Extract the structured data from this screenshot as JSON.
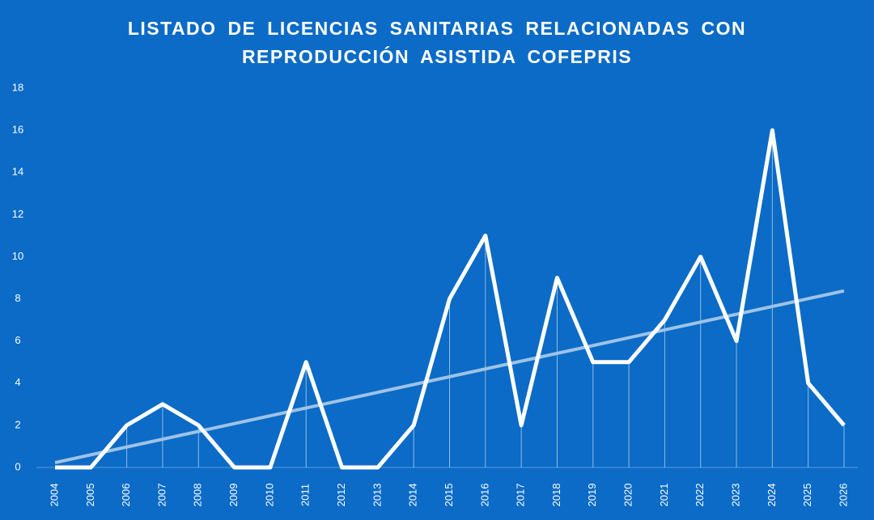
{
  "chart_data": {
    "type": "line",
    "title": "LISTADO DE LICENCIAS SANITARIAS RELACIONADAS CON REPRODUCCIÓN ASISTIDA COFEPRIS",
    "categories": [
      "2004",
      "2005",
      "2006",
      "2007",
      "2008",
      "2009",
      "2010",
      "2011",
      "2012",
      "2013",
      "2014",
      "2015",
      "2016",
      "2017",
      "2018",
      "2019",
      "2020",
      "2021",
      "2022",
      "2023",
      "2024",
      "2025",
      "2026"
    ],
    "values": [
      0,
      0,
      2,
      3,
      2,
      0,
      0,
      5,
      0,
      0,
      2,
      8,
      11,
      2,
      9,
      5,
      5,
      7,
      10,
      6,
      16,
      4,
      2
    ],
    "color": "#ffffff",
    "trendline": true,
    "trendline_color": "#9dc3e6",
    "drop_lines": true,
    "ylim": [
      0,
      18
    ],
    "yticks": [
      0,
      2,
      4,
      6,
      8,
      10,
      12,
      14,
      16,
      18
    ],
    "grid": false
  }
}
